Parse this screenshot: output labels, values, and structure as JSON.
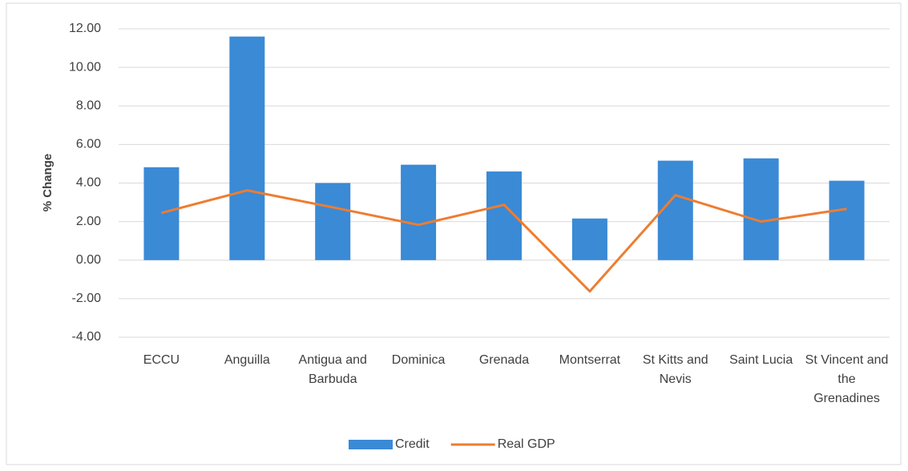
{
  "chart_data": {
    "type": "bar-line",
    "y_label": "% Change",
    "categories": [
      "ECCU",
      "Anguilla",
      "Antigua and Barbuda",
      "Dominica",
      "Grenada",
      "Montserrat",
      "St Kitts and Nevis",
      "Saint Lucia",
      "St Vincent and the Grenadines"
    ],
    "series": [
      {
        "name": "Credit",
        "type": "bar",
        "color": "#3a8ad6",
        "values": [
          4.82,
          11.6,
          4.0,
          4.95,
          4.6,
          2.16,
          5.16,
          5.28,
          4.12
        ]
      },
      {
        "name": "Real GDP",
        "type": "line",
        "color": "#ed7d31",
        "values": [
          2.45,
          3.62,
          2.74,
          1.83,
          2.87,
          -1.62,
          3.37,
          2.0,
          2.66
        ]
      }
    ],
    "ylim": [
      -4,
      12
    ],
    "yticks": [
      {
        "value": -4,
        "label": "-4.00"
      },
      {
        "value": -2,
        "label": "-2.00"
      },
      {
        "value": 0,
        "label": "0.00"
      },
      {
        "value": 2,
        "label": "2.00"
      },
      {
        "value": 4,
        "label": "4.00"
      },
      {
        "value": 6,
        "label": "6.00"
      },
      {
        "value": 8,
        "label": "8.00"
      },
      {
        "value": 10,
        "label": "10.00"
      },
      {
        "value": 12,
        "label": "12.00"
      }
    ],
    "grid": true,
    "legend": "bottom"
  }
}
